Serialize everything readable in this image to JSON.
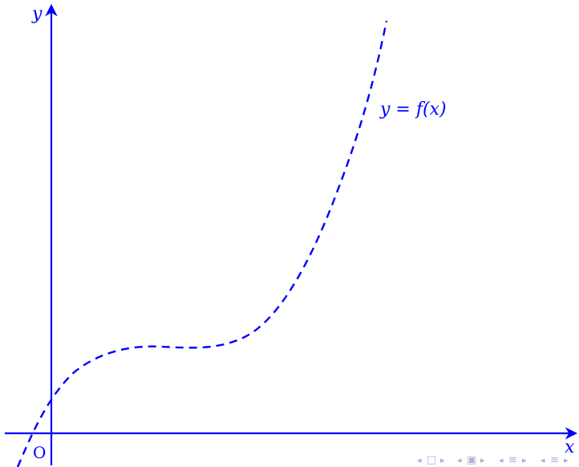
{
  "diagram": {
    "type": "function-graph",
    "axis_x_label": "x",
    "axis_y_label": "y",
    "origin_label": "O",
    "curve_label": "y = f(x)",
    "curve_style": "dashed",
    "color": "#0000ff"
  },
  "nav_bar": {
    "color": "#b0b0d8",
    "symbols": [
      "◂",
      "□",
      "▸",
      "◂",
      "▣",
      "▸",
      "◂",
      "≡",
      "▸",
      "◂",
      "≡",
      "▸"
    ]
  }
}
